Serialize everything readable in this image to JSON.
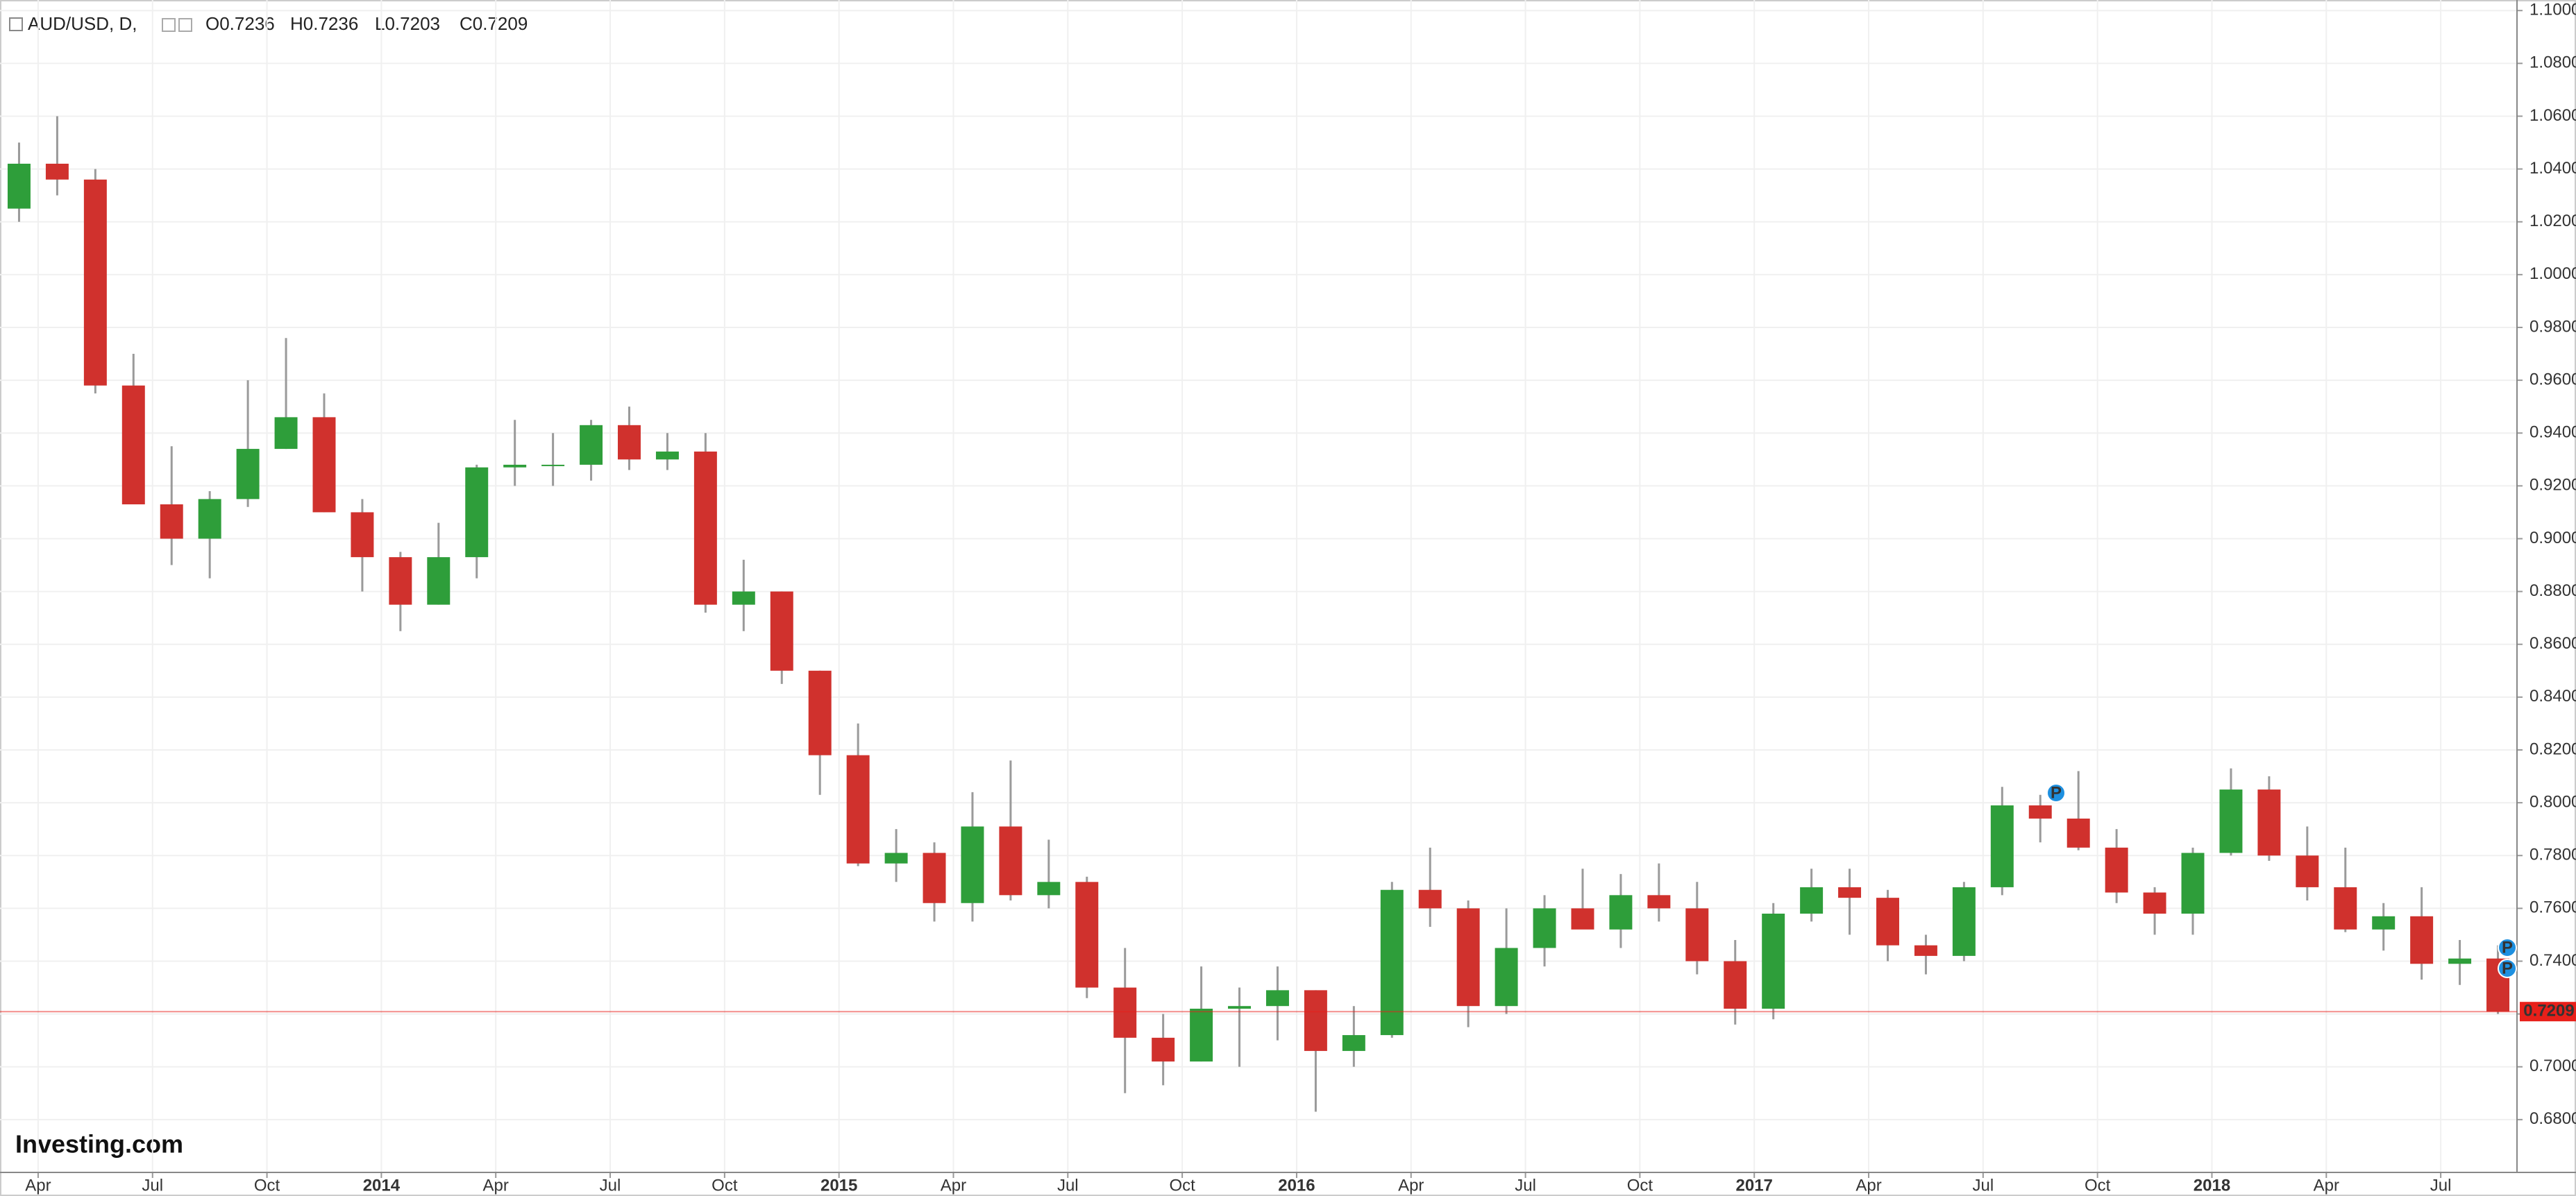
{
  "header": {
    "symbol": "AUD/USD, D,",
    "ohlc": [
      "O0.7236",
      "H0.7236",
      "L0.7203",
      "C0.7209"
    ]
  },
  "logo": "Investing.com",
  "event_markers": [
    "P",
    "P",
    "P"
  ],
  "chart_data": {
    "type": "candlestick",
    "categories": [
      null,
      "Apr",
      null,
      null,
      "Jul",
      null,
      null,
      "Oct",
      null,
      null,
      "2014",
      null,
      null,
      "Apr",
      null,
      null,
      "Jul",
      null,
      null,
      "Oct",
      null,
      null,
      "2015",
      null,
      null,
      "Apr",
      null,
      null,
      "Jul",
      null,
      null,
      "Oct",
      null,
      null,
      "2016",
      null,
      null,
      "Apr",
      null,
      null,
      "Jul",
      null,
      null,
      "Oct",
      null,
      null,
      "2017",
      null,
      null,
      "Apr",
      null,
      null,
      "Jul",
      null,
      null,
      "Oct",
      null,
      null,
      "2018",
      null,
      null,
      "Apr",
      null,
      null,
      "Jul",
      null
    ],
    "open": [
      1.025,
      1.042,
      1.036,
      0.958,
      0.913,
      0.9,
      0.915,
      0.934,
      0.946,
      0.91,
      0.893,
      0.875,
      0.893,
      0.927,
      0.928,
      0.928,
      0.943,
      0.93,
      0.933,
      0.875,
      0.88,
      0.85,
      0.818,
      0.777,
      0.781,
      0.762,
      0.791,
      0.765,
      0.77,
      0.73,
      0.711,
      0.702,
      0.722,
      0.723,
      0.729,
      0.706,
      0.712,
      0.767,
      0.76,
      0.723,
      0.745,
      0.76,
      0.752,
      0.765,
      0.76,
      0.74,
      0.722,
      0.758,
      0.768,
      0.764,
      0.746,
      0.742,
      0.768,
      0.799,
      0.794,
      0.783,
      0.766,
      0.758,
      0.781,
      0.805,
      0.78,
      0.768,
      0.752,
      0.757,
      0.739,
      0.741
    ],
    "high": [
      1.05,
      1.06,
      1.04,
      0.97,
      0.935,
      0.918,
      0.96,
      0.976,
      0.955,
      0.915,
      0.895,
      0.906,
      0.928,
      0.945,
      0.94,
      0.945,
      0.95,
      0.94,
      0.94,
      0.892,
      0.88,
      0.85,
      0.83,
      0.79,
      0.785,
      0.804,
      0.816,
      0.786,
      0.772,
      0.745,
      0.72,
      0.738,
      0.73,
      0.738,
      0.729,
      0.723,
      0.77,
      0.783,
      0.763,
      0.76,
      0.765,
      0.775,
      0.773,
      0.777,
      0.77,
      0.748,
      0.762,
      0.775,
      0.775,
      0.767,
      0.75,
      0.77,
      0.806,
      0.803,
      0.812,
      0.79,
      0.768,
      0.783,
      0.813,
      0.81,
      0.791,
      0.783,
      0.762,
      0.768,
      0.748,
      0.746
    ],
    "low": [
      1.02,
      1.03,
      0.955,
      0.915,
      0.89,
      0.885,
      0.912,
      0.934,
      0.91,
      0.88,
      0.865,
      0.875,
      0.885,
      0.92,
      0.92,
      0.922,
      0.926,
      0.926,
      0.872,
      0.865,
      0.845,
      0.803,
      0.776,
      0.77,
      0.755,
      0.755,
      0.763,
      0.76,
      0.726,
      0.69,
      0.693,
      0.702,
      0.7,
      0.71,
      0.683,
      0.7,
      0.711,
      0.753,
      0.715,
      0.72,
      0.738,
      0.753,
      0.745,
      0.755,
      0.735,
      0.716,
      0.718,
      0.755,
      0.75,
      0.74,
      0.735,
      0.74,
      0.765,
      0.785,
      0.782,
      0.762,
      0.75,
      0.75,
      0.78,
      0.778,
      0.763,
      0.751,
      0.744,
      0.733,
      0.731,
      0.72
    ],
    "close": [
      1.042,
      1.036,
      0.958,
      0.913,
      0.9,
      0.915,
      0.934,
      0.946,
      0.91,
      0.893,
      0.875,
      0.893,
      0.927,
      0.928,
      0.928,
      0.943,
      0.93,
      0.933,
      0.875,
      0.88,
      0.85,
      0.818,
      0.777,
      0.781,
      0.762,
      0.791,
      0.765,
      0.77,
      0.73,
      0.711,
      0.702,
      0.722,
      0.723,
      0.729,
      0.706,
      0.712,
      0.767,
      0.76,
      0.723,
      0.745,
      0.76,
      0.752,
      0.765,
      0.76,
      0.74,
      0.722,
      0.758,
      0.768,
      0.764,
      0.746,
      0.742,
      0.768,
      0.799,
      0.794,
      0.783,
      0.766,
      0.758,
      0.781,
      0.805,
      0.78,
      0.768,
      0.752,
      0.757,
      0.739,
      0.741,
      0.7209
    ],
    "up_color": "#2e9e3a",
    "down_color": "#d0312d",
    "last_price": 0.7209,
    "last_price_color": "#e8201a",
    "ylim": [
      0.66,
      1.104
    ],
    "yticks": [
      {
        "value": 0.68,
        "label": "0.6800"
      },
      {
        "value": 0.7,
        "label": "0.7000"
      },
      {
        "value": 0.72,
        "label": "0.7200"
      },
      {
        "value": 0.74,
        "label": "0.7400"
      },
      {
        "value": 0.76,
        "label": "0.7600"
      },
      {
        "value": 0.78,
        "label": "0.7800"
      },
      {
        "value": 0.8,
        "label": "0.8000"
      },
      {
        "value": 0.82,
        "label": "0.8200"
      },
      {
        "value": 0.84,
        "label": "0.8400"
      },
      {
        "value": 0.86,
        "label": "0.8600"
      },
      {
        "value": 0.88,
        "label": "0.8800"
      },
      {
        "value": 0.9,
        "label": "0.9000"
      },
      {
        "value": 0.92,
        "label": "0.9200"
      },
      {
        "value": 0.94,
        "label": "0.9400"
      },
      {
        "value": 0.96,
        "label": "0.9600"
      },
      {
        "value": 0.98,
        "label": "0.9800"
      },
      {
        "value": 1.0,
        "label": "1.0000"
      },
      {
        "value": 1.02,
        "label": "1.0200"
      },
      {
        "value": 1.04,
        "label": "1.0400"
      },
      {
        "value": 1.06,
        "label": "1.0600"
      },
      {
        "value": 1.08,
        "label": "1.0800"
      },
      {
        "value": 1.1,
        "label": "1.1000"
      }
    ],
    "grid": true
  }
}
